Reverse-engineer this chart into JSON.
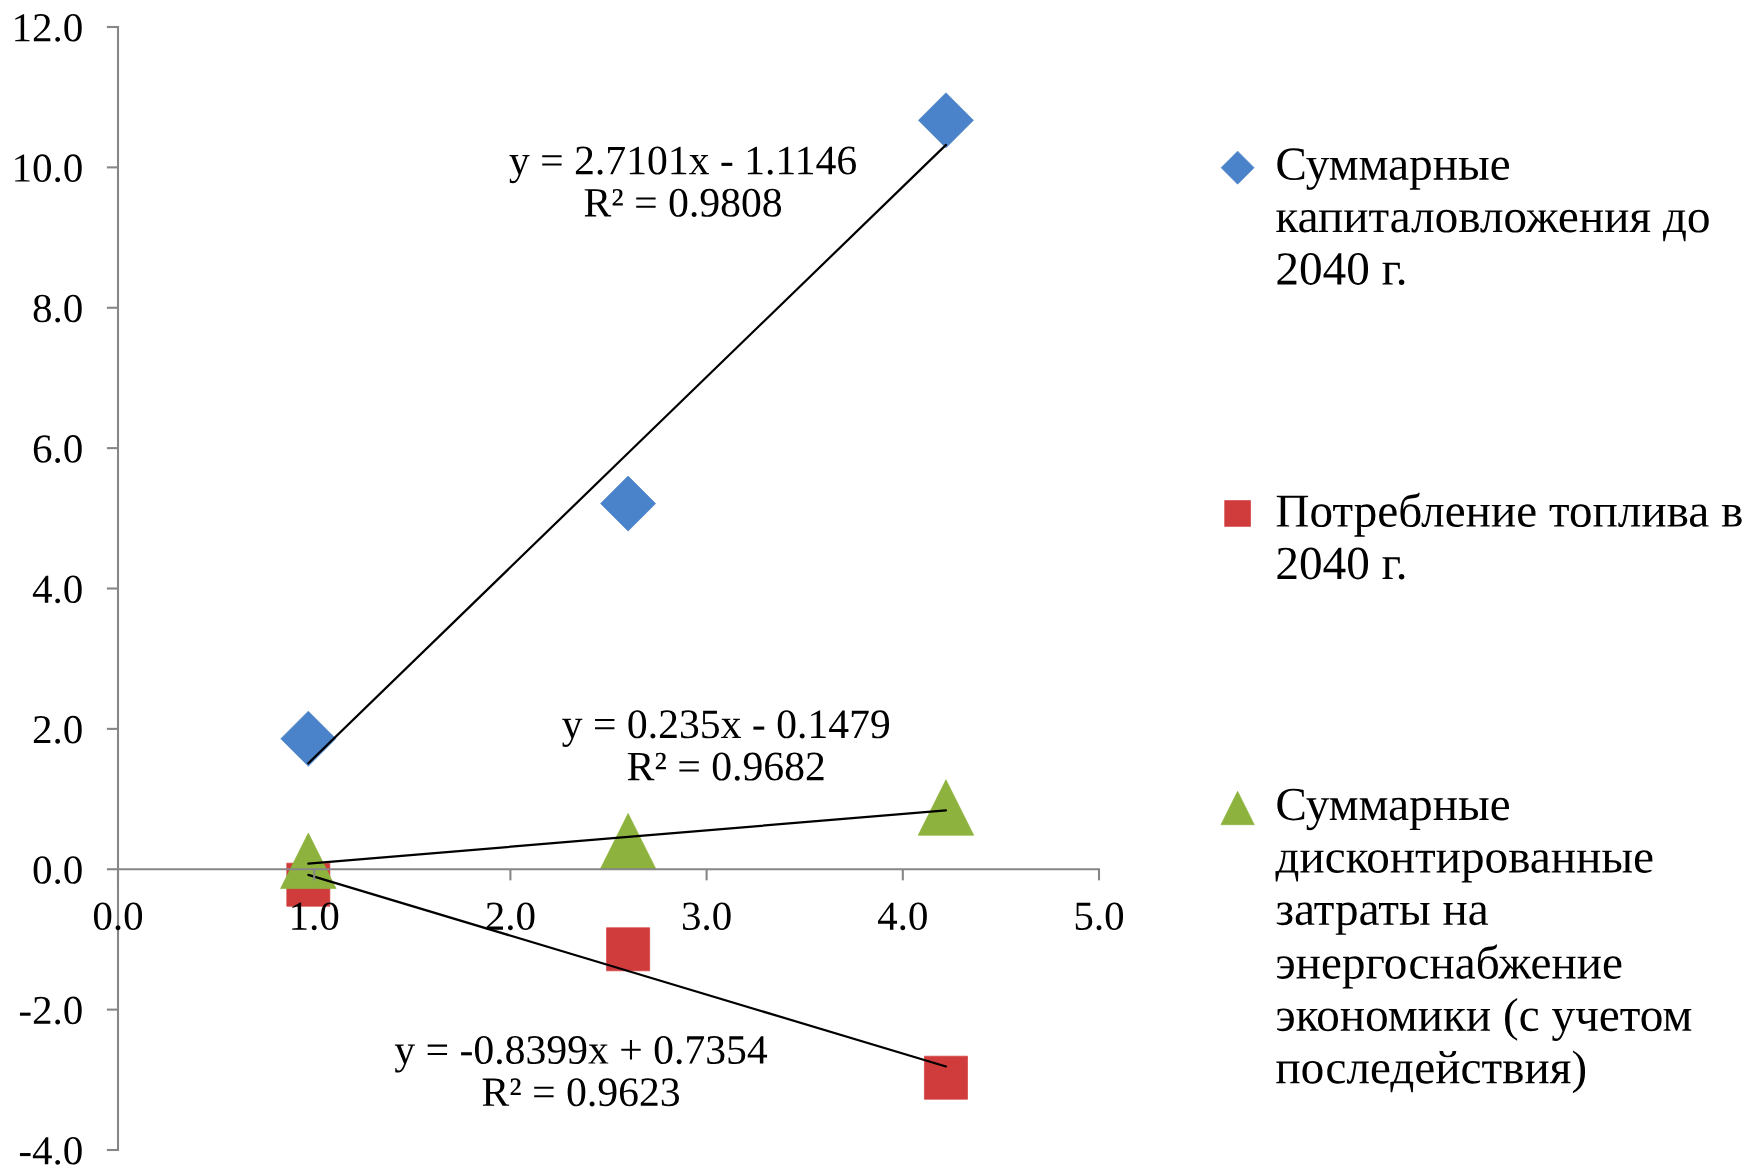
{
  "chart_data": {
    "type": "scatter",
    "x": [
      0.97,
      2.6,
      4.22
    ],
    "xlim": [
      0,
      5
    ],
    "ylim": [
      -4,
      12
    ],
    "xticks": [
      {
        "value": 0,
        "label": "0.0"
      },
      {
        "value": 1,
        "label": "1.0"
      },
      {
        "value": 2,
        "label": "2.0"
      },
      {
        "value": 3,
        "label": "3.0"
      },
      {
        "value": 4,
        "label": "4.0"
      },
      {
        "value": 5,
        "label": "5.0"
      }
    ],
    "yticks": [
      {
        "value": -4,
        "label": "-4.0"
      },
      {
        "value": -2,
        "label": "-2.0"
      },
      {
        "value": 0,
        "label": "0.0"
      },
      {
        "value": 2,
        "label": "2.0"
      },
      {
        "value": 4,
        "label": "4.0"
      },
      {
        "value": 6,
        "label": "6.0"
      },
      {
        "value": 8,
        "label": "8.0"
      },
      {
        "value": 10,
        "label": "10.0"
      },
      {
        "value": 12,
        "label": "12.0"
      }
    ],
    "legend": "right",
    "series": [
      {
        "name": "Суммарные капиталовложения до 2040 г.",
        "marker": "diamond",
        "color": "#4a83c9",
        "values": [
          1.86,
          5.21,
          10.67
        ]
      },
      {
        "name": "Потребление топлива в 2040 г.",
        "marker": "square",
        "color": "#d03c3c",
        "values": [
          -0.22,
          -1.14,
          -2.97
        ]
      },
      {
        "name": "Суммарные дисконтированные затраты на энергоснабжение экономики (с учетом последействия)",
        "marker": "triangle",
        "color": "#8db33e",
        "values": [
          0.12,
          0.4,
          0.88
        ]
      },
      {
        "type": "line",
        "color": "#000000",
        "marker": "none",
        "line_style": "solid",
        "values": [
          1.51,
          5.93,
          10.32
        ]
      },
      {
        "type": "line",
        "color": "#000000",
        "marker": "none",
        "line_style": "solid",
        "values": [
          0.08,
          0.46,
          0.84
        ]
      },
      {
        "type": "line",
        "color": "#000000",
        "marker": "none",
        "line_style": "solid",
        "values": [
          -0.08,
          -1.45,
          -2.81
        ]
      }
    ],
    "annotations": [
      "y = 2.7101x - 1.1146\nR² = 0.9808",
      "y = 0.235x - 0.1479\nR² = 0.9682",
      "y = -0.8399x + 0.7354\nR² = 0.9623"
    ]
  }
}
